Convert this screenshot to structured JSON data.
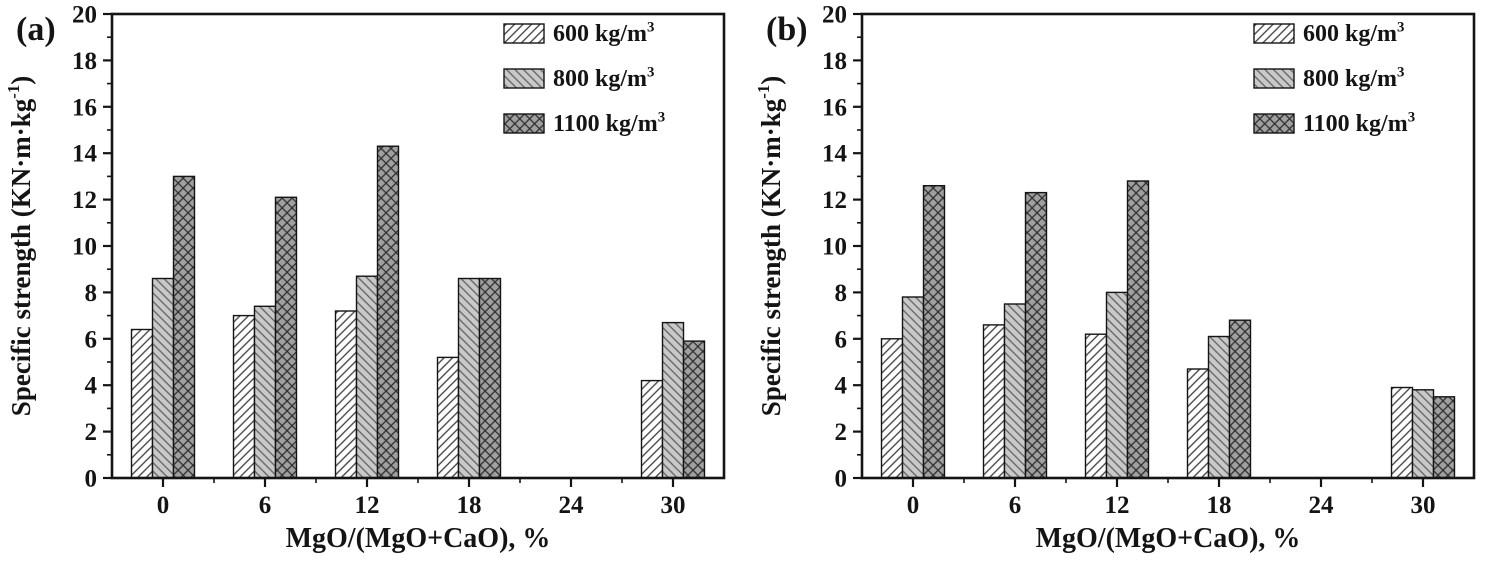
{
  "figure_title": "",
  "style": {
    "background": "#ffffff",
    "axis_color": "#141414",
    "series_fills": [
      "#ffffff",
      "#c9c9c9",
      "#a0a0a0"
    ],
    "hatch": [
      "diagonal-up",
      "diagonal-down",
      "cross"
    ],
    "hatch_colors": [
      "#3c3c3c",
      "#606060",
      "#2e2e2e"
    ],
    "hatch_widths": [
      1.3,
      1.3,
      1.3
    ]
  },
  "chart_data": [
    {
      "type": "bar",
      "panel_label": "(a)",
      "categories": [
        "0",
        "6",
        "12",
        "18",
        "24",
        "30"
      ],
      "series": [
        {
          "name": "600 kg/m³",
          "values": [
            6.4,
            7.0,
            7.2,
            5.2,
            0,
            4.2
          ]
        },
        {
          "name": "800 kg/m³",
          "values": [
            8.6,
            7.4,
            8.7,
            8.6,
            0,
            6.7
          ]
        },
        {
          "name": "1100 kg/m³",
          "values": [
            13.0,
            12.1,
            14.3,
            8.6,
            0,
            5.9
          ]
        }
      ],
      "xlabel": "MgO/(MgO+CaO), %",
      "ylabel": "Specific strength (KN·m·kg⁻¹)",
      "ylim": [
        0,
        20
      ],
      "ytick_step": 2,
      "ytick_minor_step": 1,
      "grid": false,
      "legend_position": "top-right"
    },
    {
      "type": "bar",
      "panel_label": "(b)",
      "categories": [
        "0",
        "6",
        "12",
        "18",
        "24",
        "30"
      ],
      "series": [
        {
          "name": "600 kg/m³",
          "values": [
            6.0,
            6.6,
            6.2,
            4.7,
            0,
            3.9
          ]
        },
        {
          "name": "800 kg/m³",
          "values": [
            7.8,
            7.5,
            8.0,
            6.1,
            0,
            3.8
          ]
        },
        {
          "name": "1100 kg/m³",
          "values": [
            12.6,
            12.3,
            12.8,
            6.8,
            0,
            3.5
          ]
        }
      ],
      "xlabel": "MgO/(MgO+CaO), %",
      "ylabel": "Specific strength (KN·m·kg⁻¹)",
      "ylim": [
        0,
        20
      ],
      "ytick_step": 2,
      "ytick_minor_step": 1,
      "grid": false,
      "legend_position": "top-right"
    }
  ]
}
